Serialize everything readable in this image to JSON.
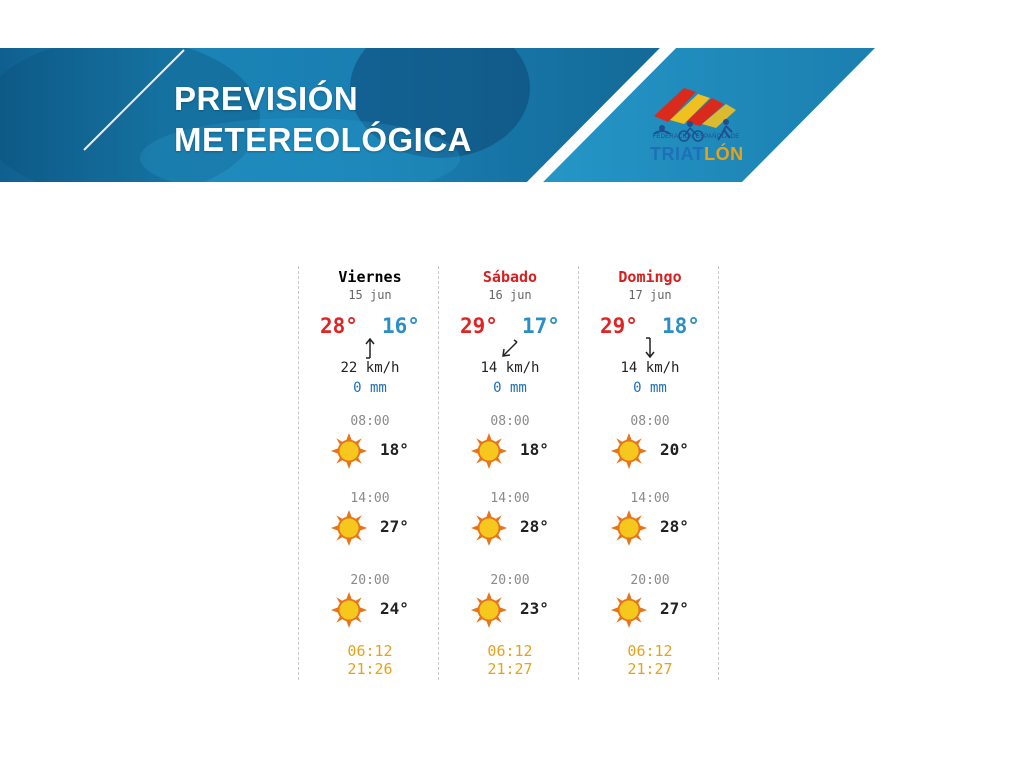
{
  "header": {
    "title_line1": "PREVISIÓN",
    "title_line2": "METEREOLÓGICA",
    "logo_federation": "FEDERACIÓN ESPAÑOLA DE",
    "logo_word_a": "TRIAT",
    "logo_word_b": "LÓN"
  },
  "colors": {
    "banner_blue": "#1e86b6",
    "max_temp": "#e02424",
    "min_temp": "#2c8fc4",
    "weekend_day": "#d81e1e",
    "sun_times": "#e8a21a",
    "rain": "#2070b8"
  },
  "days": [
    {
      "name": "Viernes",
      "date": "15 jun",
      "weekend": false,
      "max": "28°",
      "min": "16°",
      "wind_icon": "wind-arrow-north-icon",
      "wind": "22 km/h",
      "rain": "0 mm",
      "slots": [
        {
          "time": "08:00",
          "icon": "sun-icon",
          "temp": "18°"
        },
        {
          "time": "14:00",
          "icon": "sun-icon",
          "temp": "27°"
        },
        {
          "time": "20:00",
          "icon": "sun-icon",
          "temp": "24°"
        }
      ],
      "sunrise": "06:12",
      "sunset": "21:26"
    },
    {
      "name": "Sábado",
      "date": "16 jun",
      "weekend": true,
      "max": "29°",
      "min": "17°",
      "wind_icon": "wind-arrow-southwest-icon",
      "wind": "14 km/h",
      "rain": "0 mm",
      "slots": [
        {
          "time": "08:00",
          "icon": "sun-icon",
          "temp": "18°"
        },
        {
          "time": "14:00",
          "icon": "sun-icon",
          "temp": "28°"
        },
        {
          "time": "20:00",
          "icon": "sun-icon",
          "temp": "23°"
        }
      ],
      "sunrise": "06:12",
      "sunset": "21:27"
    },
    {
      "name": "Domingo",
      "date": "17 jun",
      "weekend": true,
      "max": "29°",
      "min": "18°",
      "wind_icon": "wind-arrow-south-icon",
      "wind": "14 km/h",
      "rain": "0 mm",
      "slots": [
        {
          "time": "08:00",
          "icon": "sun-icon",
          "temp": "20°"
        },
        {
          "time": "14:00",
          "icon": "sun-icon",
          "temp": "28°"
        },
        {
          "time": "20:00",
          "icon": "sun-icon",
          "temp": "27°"
        }
      ],
      "sunrise": "06:12",
      "sunset": "21:27"
    }
  ]
}
